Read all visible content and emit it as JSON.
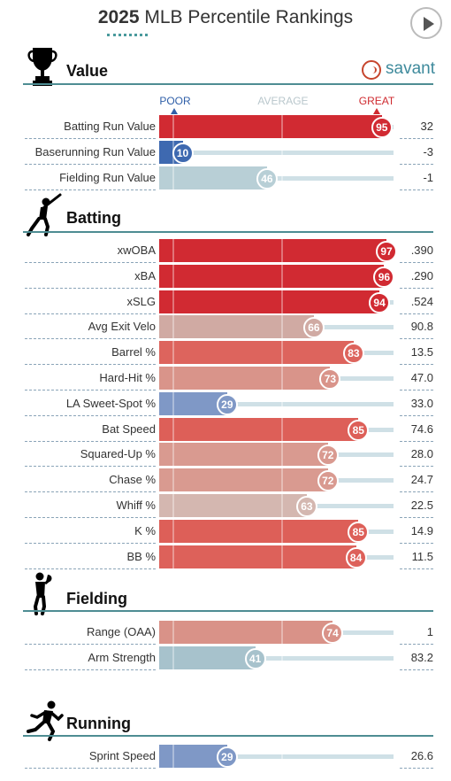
{
  "header": {
    "year": "2025",
    "title_rest": " MLB Percentile Rankings"
  },
  "brand": {
    "label": "savant",
    "color": "#3e8a9c"
  },
  "scale": {
    "poor": "POOR",
    "average": "AVERAGE",
    "great": "GREAT"
  },
  "colors": {
    "great_red": "#cf2a2f",
    "poor_blue": "#3f6eb5",
    "average_gray": "#c9d9de",
    "section_line": "#4e8d93"
  },
  "sections": [
    {
      "title": "Value",
      "icon": "trophy-icon",
      "rows": [
        {
          "label": "Batting Run Value",
          "percentile": 95,
          "value": "32",
          "color": "#d12a32"
        },
        {
          "label": "Baserunning Run Value",
          "percentile": 10,
          "value": "-3",
          "color": "#3e69b0"
        },
        {
          "label": "Fielding Run Value",
          "percentile": 46,
          "value": "-1",
          "color": "#b8cfd6"
        }
      ]
    },
    {
      "title": "Batting",
      "icon": "batter-icon",
      "rows": [
        {
          "label": "xwOBA",
          "percentile": 97,
          "value": ".390",
          "color": "#d12a32"
        },
        {
          "label": "xBA",
          "percentile": 96,
          "value": ".290",
          "color": "#d12a32"
        },
        {
          "label": "xSLG",
          "percentile": 94,
          "value": ".524",
          "color": "#d12a32"
        },
        {
          "label": "Avg Exit Velo",
          "percentile": 66,
          "value": "90.8",
          "color": "#d0aaa3"
        },
        {
          "label": "Barrel %",
          "percentile": 83,
          "value": "13.5",
          "color": "#dd645d"
        },
        {
          "label": "Hard-Hit %",
          "percentile": 73,
          "value": "47.0",
          "color": "#d9948a"
        },
        {
          "label": "LA Sweet-Spot %",
          "percentile": 29,
          "value": "33.0",
          "color": "#7f98c6"
        },
        {
          "label": "Bat Speed",
          "percentile": 85,
          "value": "74.6",
          "color": "#dd5f58"
        },
        {
          "label": "Squared-Up %",
          "percentile": 72,
          "value": "28.0",
          "color": "#d99a90"
        },
        {
          "label": "Chase %",
          "percentile": 72,
          "value": "24.7",
          "color": "#d99a90"
        },
        {
          "label": "Whiff %",
          "percentile": 63,
          "value": "22.5",
          "color": "#d4b7b0"
        },
        {
          "label": "K %",
          "percentile": 85,
          "value": "14.9",
          "color": "#dd5f58"
        },
        {
          "label": "BB %",
          "percentile": 84,
          "value": "11.5",
          "color": "#dd615a"
        }
      ]
    },
    {
      "title": "Fielding",
      "icon": "fielder-icon",
      "rows": [
        {
          "label": "Range (OAA)",
          "percentile": 74,
          "value": "1",
          "color": "#d99288"
        },
        {
          "label": "Arm Strength",
          "percentile": 41,
          "value": "83.2",
          "color": "#a7c2cc"
        }
      ]
    },
    {
      "title": "Running",
      "icon": "runner-icon",
      "rows": [
        {
          "label": "Sprint Speed",
          "percentile": 29,
          "value": "26.6",
          "color": "#7f98c6"
        }
      ]
    }
  ]
}
